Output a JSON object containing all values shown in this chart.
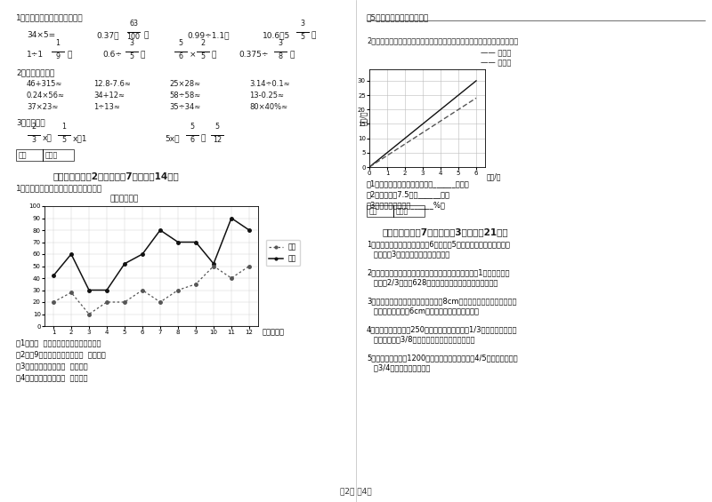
{
  "page_bg": "#ffffff",
  "left_col": {
    "income_data": [
      42,
      60,
      30,
      30,
      52,
      60,
      80,
      70,
      70,
      52,
      90,
      80
    ],
    "expense_data": [
      20,
      28,
      10,
      20,
      20,
      30,
      20,
      30,
      35,
      50,
      40,
      50
    ],
    "legend_income": "收入",
    "legend_expense": "支出",
    "questions_left": [
      "（1）、（  ）月份收入和支出相差最小。",
      "（2）、9月份收入和支出相差（  ）万元。",
      "（3）、全年实际收入（  ）万元。",
      "（4）、平均每月支出（  ）万元。"
    ]
  },
  "right_col": {
    "line_before_slope": 5,
    "line_after_slope": 4,
    "chart2_questions": [
      "（1）降价前后，长度与总价都成______比例。",
      "（2）降价前买7.5米需______元。",
      "（3）这种彩带降价了______%。"
    ],
    "app_questions": [
      "1．一个圆锥形钢锭，底面直径6分米，高5分米，体积多少？如果每立\n   方分米重3千克，这个钢锭重几千克？",
      "2．一个装满汽油的圆柱形油桶，从里面量，底面半径为1米。如用去这\n   桶油的2/3后还剩628升，求这个油桶的高。（列方程解）",
      "3．一个圆柱形玻璃容器的底面半径是8cm，把一个铁球从这个容器的水\n   中取出，水面下降6cm，这个铁球的体积是多少？",
      "4．一个果园有苹果树250棵，梨树占所有果树的1/3，这两种果树正好\n   是果园枣树的3/8，这个果园一共有果树多少棵？",
      "5．新光农场种白菜1200公顷，种的萝卜是白菜的4/5，萝卜又是黄瓜\n   的3/4，种黄瓜多少公顷？"
    ]
  }
}
